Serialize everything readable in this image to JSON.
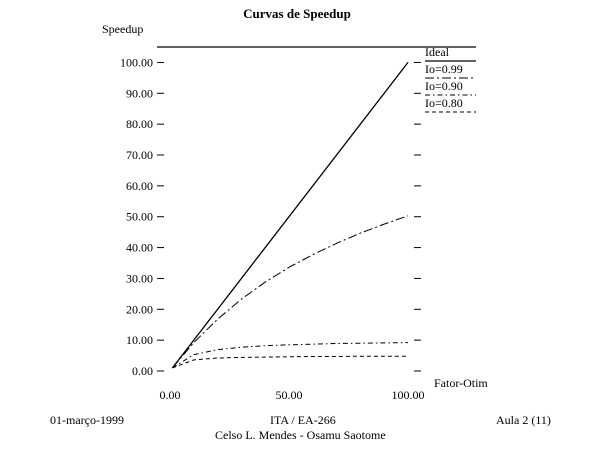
{
  "footer": {
    "date": "01-março-1999",
    "course": "ITA / EA-266",
    "authors": "Celso L. Mendes - Osamu Saotome",
    "lecture": "Aula 2 (11)"
  },
  "chart_data": {
    "type": "line",
    "title": "Curvas de Speedup",
    "ylabel": "Speedup",
    "xlabel": "Fator-Otim",
    "xlim": [
      0,
      100
    ],
    "ylim": [
      0,
      105
    ],
    "x_ticks": [
      0,
      50,
      100
    ],
    "x_tick_labels": [
      "0.00",
      "50.00",
      "100.00"
    ],
    "y_ticks": [
      0,
      10,
      20,
      30,
      40,
      50,
      60,
      70,
      80,
      90,
      100
    ],
    "y_tick_labels": [
      "0.00",
      "10.00",
      "20.00",
      "30.00",
      "40.00",
      "50.00",
      "60.00",
      "70.00",
      "80.00",
      "90.00",
      "100.00"
    ],
    "legend_position": "right",
    "grid": false,
    "series": [
      {
        "name": "Ideal",
        "dash": "none",
        "x": [
          1,
          100
        ],
        "y": [
          1,
          100
        ]
      },
      {
        "name": "fo=0.99",
        "dash": "9 3 2 3",
        "x": [
          1,
          10,
          20,
          30,
          40,
          50,
          60,
          70,
          80,
          90,
          100
        ],
        "y": [
          1.0,
          9.2,
          16.8,
          23.3,
          28.8,
          33.6,
          37.7,
          41.4,
          44.7,
          47.6,
          50.3
        ]
      },
      {
        "name": "fo=0.90",
        "dash": "5 3 1.5 3",
        "x": [
          1,
          10,
          20,
          30,
          40,
          50,
          60,
          70,
          80,
          90,
          100
        ],
        "y": [
          1.0,
          5.3,
          6.9,
          7.7,
          8.2,
          8.5,
          8.7,
          8.9,
          9.0,
          9.1,
          9.2
        ]
      },
      {
        "name": "fo=0.80",
        "dash": "4 3",
        "x": [
          1,
          10,
          20,
          30,
          40,
          50,
          60,
          70,
          80,
          90,
          100
        ],
        "y": [
          1.0,
          3.6,
          4.2,
          4.4,
          4.5,
          4.6,
          4.7,
          4.7,
          4.8,
          4.8,
          4.8
        ]
      }
    ],
    "legend_labels": [
      "Ideal",
      "Io=0.99",
      "Io=0.90",
      "Io=0.80"
    ],
    "line_color": "#000000"
  }
}
